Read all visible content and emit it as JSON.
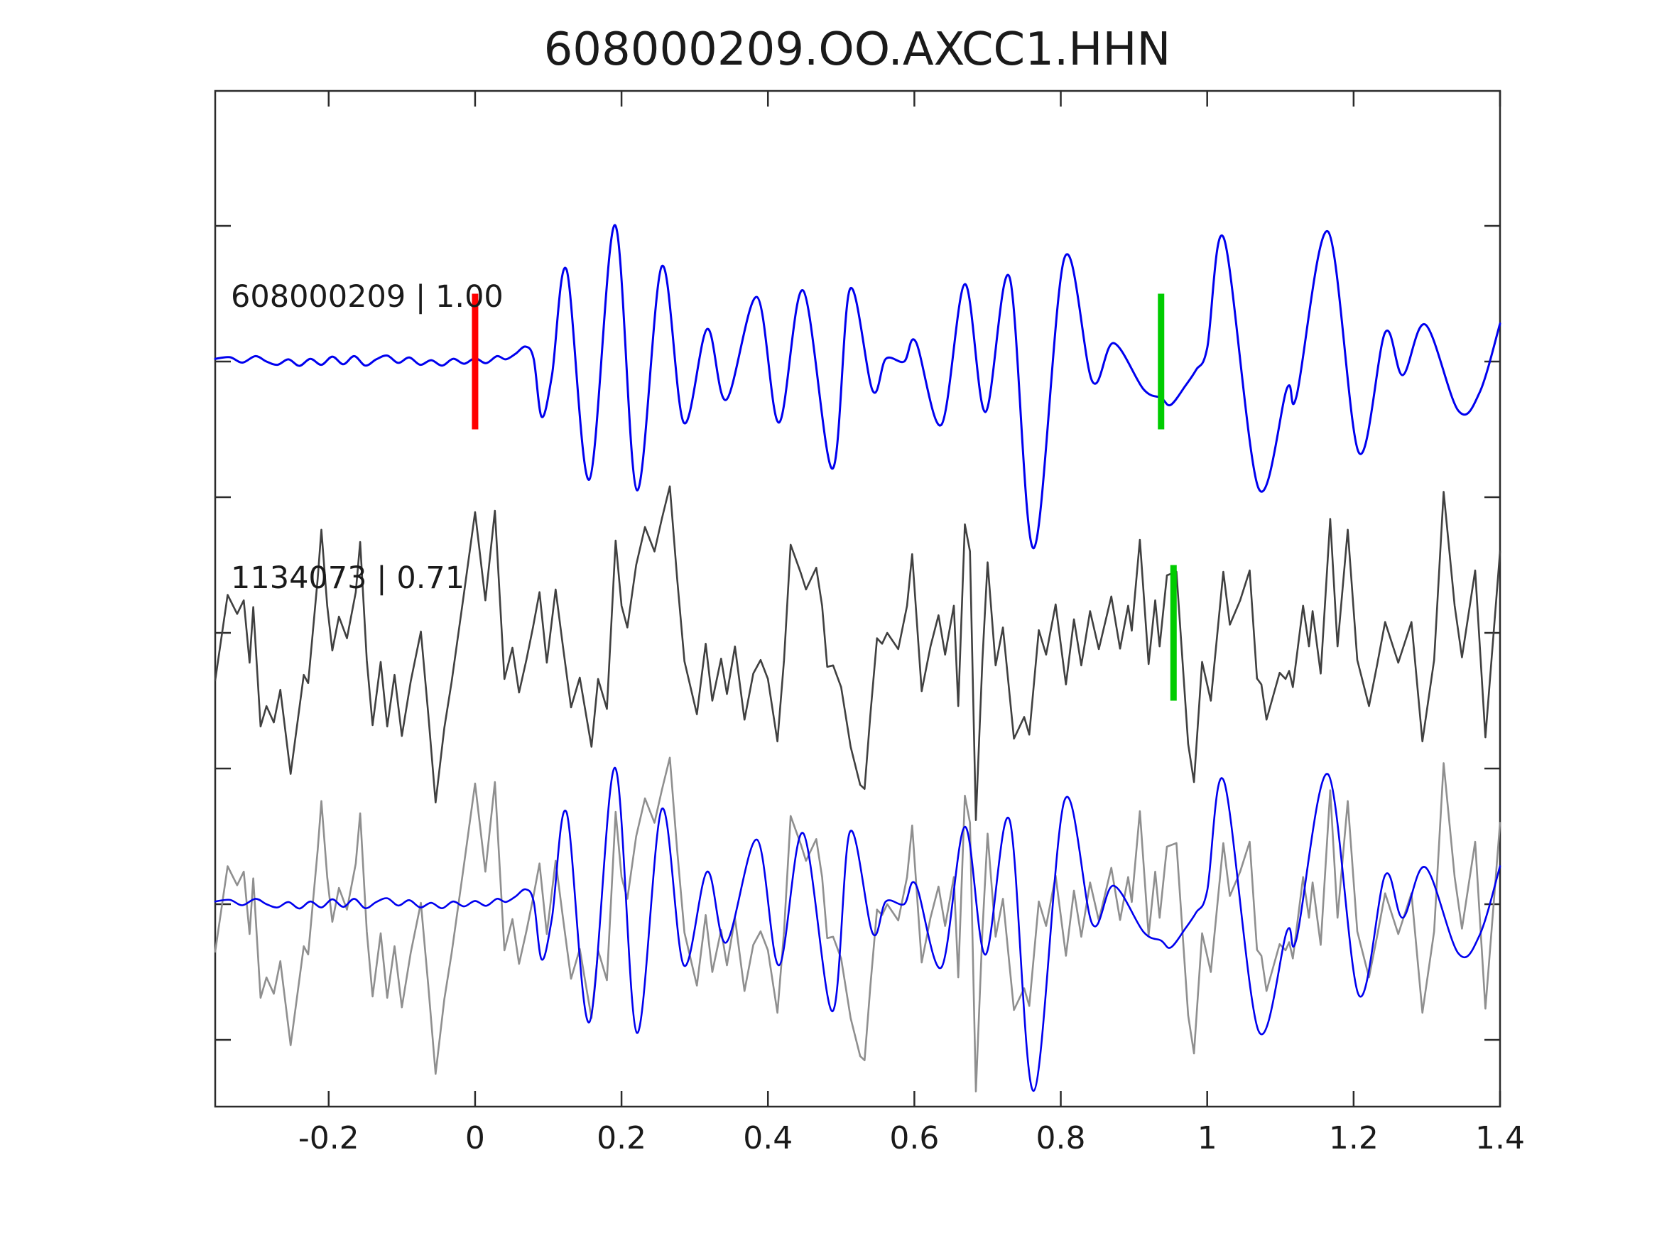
{
  "chart_data": {
    "type": "line",
    "title": "608000209.OO.AXCC1.HHN",
    "xlabel": "",
    "ylabel": "",
    "xlim": [
      -0.355,
      1.4
    ],
    "grid": false,
    "legend": "none",
    "background_color": "#ffffff",
    "axis_color": "#2b2b2b",
    "tick_direction": "in",
    "x_ticks": [
      -0.2,
      0,
      0.2,
      0.4,
      0.6,
      0.8,
      1,
      1.2,
      1.4
    ],
    "x_tick_labels": [
      "-0.2",
      "0",
      "0.2",
      "0.4",
      "0.6",
      "0.8",
      "1",
      "1.2",
      "1.4"
    ],
    "y_tick_offsets": [
      -0.5,
      0,
      0.5,
      1,
      1.5,
      2,
      2.5
    ],
    "y_tick_labels_visible": false,
    "traces": [
      {
        "name": "template-trace",
        "label": "608000209 | 1.00",
        "color": "#0000ee",
        "offset": 2,
        "smooth": true,
        "points": [
          [
            -0.355,
            0.01
          ],
          [
            -0.335,
            0.016
          ],
          [
            -0.318,
            -0.004
          ],
          [
            -0.3,
            0.02
          ],
          [
            -0.285,
            0.0
          ],
          [
            -0.27,
            -0.012
          ],
          [
            -0.255,
            0.008
          ],
          [
            -0.24,
            -0.016
          ],
          [
            -0.225,
            0.01
          ],
          [
            -0.21,
            -0.012
          ],
          [
            -0.195,
            0.018
          ],
          [
            -0.18,
            -0.01
          ],
          [
            -0.165,
            0.02
          ],
          [
            -0.15,
            -0.015
          ],
          [
            -0.135,
            0.008
          ],
          [
            -0.12,
            0.022
          ],
          [
            -0.105,
            -0.005
          ],
          [
            -0.09,
            0.015
          ],
          [
            -0.075,
            -0.012
          ],
          [
            -0.06,
            0.005
          ],
          [
            -0.045,
            -0.015
          ],
          [
            -0.03,
            0.01
          ],
          [
            -0.015,
            -0.008
          ],
          [
            0.0,
            0.012
          ],
          [
            0.015,
            -0.006
          ],
          [
            0.03,
            0.02
          ],
          [
            0.042,
            0.008
          ],
          [
            0.055,
            0.028
          ],
          [
            0.069,
            0.055
          ],
          [
            0.08,
            0.01
          ],
          [
            0.091,
            -0.204
          ],
          [
            0.105,
            -0.05
          ],
          [
            0.125,
            0.338
          ],
          [
            0.156,
            -0.435
          ],
          [
            0.191,
            0.503
          ],
          [
            0.221,
            -0.474
          ],
          [
            0.255,
            0.351
          ],
          [
            0.285,
            -0.225
          ],
          [
            0.317,
            0.12
          ],
          [
            0.343,
            -0.141
          ],
          [
            0.385,
            0.238
          ],
          [
            0.415,
            -0.225
          ],
          [
            0.448,
            0.262
          ],
          [
            0.488,
            -0.395
          ],
          [
            0.512,
            0.267
          ],
          [
            0.543,
            -0.107
          ],
          [
            0.561,
            0.01
          ],
          [
            0.586,
            0.0
          ],
          [
            0.602,
            0.073
          ],
          [
            0.637,
            -0.233
          ],
          [
            0.669,
            0.285
          ],
          [
            0.697,
            -0.186
          ],
          [
            0.73,
            0.311
          ],
          [
            0.763,
            -0.688
          ],
          [
            0.805,
            0.382
          ],
          [
            0.843,
            -0.073
          ],
          [
            0.872,
            0.068
          ],
          [
            0.913,
            -0.102
          ],
          [
            0.937,
            -0.134
          ],
          [
            0.95,
            -0.16
          ],
          [
            0.97,
            -0.09
          ],
          [
            0.985,
            -0.03
          ],
          [
            1.0,
            0.05
          ],
          [
            1.023,
            0.453
          ],
          [
            1.07,
            -0.466
          ],
          [
            1.109,
            -0.099
          ],
          [
            1.122,
            -0.128
          ],
          [
            1.165,
            0.479
          ],
          [
            1.207,
            -0.335
          ],
          [
            1.243,
            0.107
          ],
          [
            1.267,
            -0.05
          ],
          [
            1.298,
            0.136
          ],
          [
            1.343,
            -0.181
          ],
          [
            1.372,
            -0.115
          ],
          [
            1.4,
            0.14
          ]
        ]
      },
      {
        "name": "detection-trace",
        "label": "1134073 | 0.71",
        "color": "#404040",
        "offset": 1,
        "smooth": false,
        "points": [
          [
            -0.355,
            -0.175
          ],
          [
            -0.338,
            0.14
          ],
          [
            -0.325,
            0.07
          ],
          [
            -0.316,
            0.12
          ],
          [
            -0.308,
            -0.11
          ],
          [
            -0.303,
            0.095
          ],
          [
            -0.293,
            -0.345
          ],
          [
            -0.285,
            -0.27
          ],
          [
            -0.275,
            -0.33
          ],
          [
            -0.266,
            -0.21
          ],
          [
            -0.252,
            -0.52
          ],
          [
            -0.234,
            -0.155
          ],
          [
            -0.228,
            -0.185
          ],
          [
            -0.215,
            0.2
          ],
          [
            -0.21,
            0.38
          ],
          [
            -0.202,
            0.1
          ],
          [
            -0.195,
            -0.065
          ],
          [
            -0.186,
            0.06
          ],
          [
            -0.175,
            -0.02
          ],
          [
            -0.163,
            0.15
          ],
          [
            -0.157,
            0.335
          ],
          [
            -0.148,
            -0.1
          ],
          [
            -0.14,
            -0.34
          ],
          [
            -0.129,
            -0.107
          ],
          [
            -0.12,
            -0.345
          ],
          [
            -0.11,
            -0.155
          ],
          [
            -0.1,
            -0.38
          ],
          [
            -0.088,
            -0.18
          ],
          [
            -0.074,
            0.005
          ],
          [
            -0.064,
            -0.3
          ],
          [
            -0.054,
            -0.625
          ],
          [
            -0.042,
            -0.35
          ],
          [
            -0.032,
            -0.18
          ],
          [
            -0.015,
            0.15
          ],
          [
            0.0,
            0.445
          ],
          [
            0.014,
            0.12
          ],
          [
            0.027,
            0.45
          ],
          [
            0.04,
            -0.17
          ],
          [
            0.051,
            -0.055
          ],
          [
            0.06,
            -0.22
          ],
          [
            0.07,
            -0.1
          ],
          [
            0.079,
            0.02
          ],
          [
            0.088,
            0.15
          ],
          [
            0.098,
            -0.11
          ],
          [
            0.11,
            0.16
          ],
          [
            0.12,
            -0.05
          ],
          [
            0.131,
            -0.275
          ],
          [
            0.143,
            -0.165
          ],
          [
            0.159,
            -0.42
          ],
          [
            0.168,
            -0.17
          ],
          [
            0.18,
            -0.28
          ],
          [
            0.192,
            0.34
          ],
          [
            0.2,
            0.1
          ],
          [
            0.208,
            0.02
          ],
          [
            0.22,
            0.25
          ],
          [
            0.232,
            0.39
          ],
          [
            0.245,
            0.3
          ],
          [
            0.255,
            0.42
          ],
          [
            0.266,
            0.54
          ],
          [
            0.276,
            0.2
          ],
          [
            0.286,
            -0.105
          ],
          [
            0.303,
            -0.3
          ],
          [
            0.315,
            -0.04
          ],
          [
            0.324,
            -0.25
          ],
          [
            0.336,
            -0.095
          ],
          [
            0.344,
            -0.225
          ],
          [
            0.355,
            -0.05
          ],
          [
            0.368,
            -0.32
          ],
          [
            0.38,
            -0.15
          ],
          [
            0.39,
            -0.1
          ],
          [
            0.4,
            -0.17
          ],
          [
            0.413,
            -0.4
          ],
          [
            0.422,
            -0.1
          ],
          [
            0.431,
            0.325
          ],
          [
            0.445,
            0.22
          ],
          [
            0.452,
            0.16
          ],
          [
            0.466,
            0.24
          ],
          [
            0.474,
            0.1
          ],
          [
            0.481,
            -0.125
          ],
          [
            0.489,
            -0.12
          ],
          [
            0.5,
            -0.2
          ],
          [
            0.513,
            -0.42
          ],
          [
            0.526,
            -0.56
          ],
          [
            0.532,
            -0.575
          ],
          [
            0.54,
            -0.3
          ],
          [
            0.549,
            -0.02
          ],
          [
            0.556,
            -0.04
          ],
          [
            0.563,
            0.0
          ],
          [
            0.578,
            -0.06
          ],
          [
            0.59,
            0.1
          ],
          [
            0.597,
            0.29
          ],
          [
            0.61,
            -0.215
          ],
          [
            0.622,
            -0.05
          ],
          [
            0.633,
            0.065
          ],
          [
            0.642,
            -0.08
          ],
          [
            0.654,
            0.1
          ],
          [
            0.66,
            -0.27
          ],
          [
            0.669,
            0.4
          ],
          [
            0.676,
            0.3
          ],
          [
            0.684,
            -0.69
          ],
          [
            0.693,
            -0.1
          ],
          [
            0.7,
            0.26
          ],
          [
            0.711,
            -0.12
          ],
          [
            0.721,
            0.02
          ],
          [
            0.736,
            -0.39
          ],
          [
            0.75,
            -0.31
          ],
          [
            0.757,
            -0.375
          ],
          [
            0.77,
            0.01
          ],
          [
            0.78,
            -0.08
          ],
          [
            0.793,
            0.105
          ],
          [
            0.807,
            -0.19
          ],
          [
            0.818,
            0.05
          ],
          [
            0.828,
            -0.12
          ],
          [
            0.84,
            0.08
          ],
          [
            0.852,
            -0.06
          ],
          [
            0.869,
            0.134
          ],
          [
            0.881,
            -0.058
          ],
          [
            0.892,
            0.1
          ],
          [
            0.897,
            0.008
          ],
          [
            0.908,
            0.343
          ],
          [
            0.92,
            -0.115
          ],
          [
            0.929,
            0.12
          ],
          [
            0.935,
            -0.05
          ],
          [
            0.945,
            0.212
          ],
          [
            0.958,
            0.225
          ],
          [
            0.974,
            -0.41
          ],
          [
            0.982,
            -0.55
          ],
          [
            0.993,
            -0.107
          ],
          [
            1.005,
            -0.25
          ],
          [
            1.022,
            0.225
          ],
          [
            1.031,
            0.03
          ],
          [
            1.045,
            0.12
          ],
          [
            1.058,
            0.23
          ],
          [
            1.068,
            -0.168
          ],
          [
            1.074,
            -0.19
          ],
          [
            1.081,
            -0.32
          ],
          [
            1.099,
            -0.147
          ],
          [
            1.107,
            -0.17
          ],
          [
            1.112,
            -0.14
          ],
          [
            1.117,
            -0.2
          ],
          [
            1.131,
            0.1
          ],
          [
            1.139,
            -0.05
          ],
          [
            1.144,
            0.08
          ],
          [
            1.155,
            -0.15
          ],
          [
            1.168,
            0.42
          ],
          [
            1.178,
            -0.05
          ],
          [
            1.192,
            0.38
          ],
          [
            1.205,
            -0.1
          ],
          [
            1.221,
            -0.27
          ],
          [
            1.232,
            -0.12
          ],
          [
            1.243,
            0.04
          ],
          [
            1.261,
            -0.11
          ],
          [
            1.279,
            0.04
          ],
          [
            1.294,
            -0.4
          ],
          [
            1.31,
            -0.1
          ],
          [
            1.323,
            0.52
          ],
          [
            1.338,
            0.1
          ],
          [
            1.348,
            -0.09
          ],
          [
            1.366,
            0.23
          ],
          [
            1.38,
            -0.385
          ],
          [
            1.4,
            0.3
          ]
        ]
      },
      {
        "name": "overlay-row",
        "label": "",
        "offset": 0,
        "components": [
          {
            "ref": "detection-trace",
            "color": "#8f8f8f"
          },
          {
            "ref": "template-trace",
            "color": "#0000ee"
          }
        ]
      }
    ],
    "markers": [
      {
        "name": "detection-time-marker",
        "trace_offset": 2,
        "t": 0.0,
        "color": "#ff0000",
        "half_height": 0.25
      },
      {
        "name": "template-pick-marker",
        "trace_offset": 2,
        "t": 0.937,
        "color": "#00cc00",
        "half_height": 0.25
      },
      {
        "name": "detection-pick-marker",
        "trace_offset": 1,
        "t": 0.954,
        "color": "#00cc00",
        "half_height": 0.25
      }
    ]
  }
}
